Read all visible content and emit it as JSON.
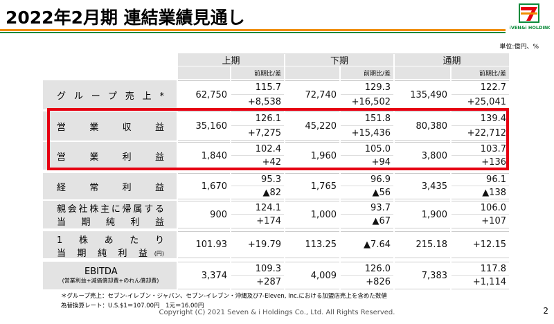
{
  "header": {
    "title": "2022年2月期 連結業績見通し",
    "logo_text": "SEVEN&i HOLDINGS"
  },
  "unit": "単位:億円、%",
  "table": {
    "periods": [
      "上期",
      "下期",
      "通期"
    ],
    "sub_header": "前期比/差",
    "rows": [
      {
        "label": "グループ売上*",
        "cells": [
          {
            "amount": "62,750",
            "ratio": "115.7",
            "diff": "+8,538"
          },
          {
            "amount": "72,740",
            "ratio": "129.3",
            "diff": "+16,502"
          },
          {
            "amount": "135,490",
            "ratio": "122.7",
            "diff": "+25,041"
          }
        ]
      },
      {
        "label": "営業収益",
        "cells": [
          {
            "amount": "35,160",
            "ratio": "126.1",
            "diff": "+7,275"
          },
          {
            "amount": "45,220",
            "ratio": "151.8",
            "diff": "+15,436"
          },
          {
            "amount": "80,380",
            "ratio": "139.4",
            "diff": "+22,712"
          }
        ]
      },
      {
        "label": "営業利益",
        "cells": [
          {
            "amount": "1,840",
            "ratio": "102.4",
            "diff": "+42"
          },
          {
            "amount": "1,960",
            "ratio": "105.0",
            "diff": "+94"
          },
          {
            "amount": "3,800",
            "ratio": "103.7",
            "diff": "+136"
          }
        ]
      },
      {
        "label": "経常利益",
        "cells": [
          {
            "amount": "1,670",
            "ratio": "95.3",
            "diff": "▲82"
          },
          {
            "amount": "1,765",
            "ratio": "96.9",
            "diff": "▲56"
          },
          {
            "amount": "3,435",
            "ratio": "96.1",
            "diff": "▲138"
          }
        ]
      },
      {
        "label": [
          "親会社株主に帰属する",
          "当期純利益"
        ],
        "cells": [
          {
            "amount": "900",
            "ratio": "124.1",
            "diff": "+174"
          },
          {
            "amount": "1,000",
            "ratio": "93.7",
            "diff": "▲67"
          },
          {
            "amount": "1,900",
            "ratio": "106.0",
            "diff": "+107"
          }
        ]
      },
      {
        "label": [
          "1株あたり",
          "当期純利益"
        ],
        "note": "(円)",
        "cells": [
          {
            "amount": "101.93",
            "diff": "+19.79"
          },
          {
            "amount": "113.25",
            "diff": "▲7.64"
          },
          {
            "amount": "215.18",
            "diff": "+12.15"
          }
        ]
      },
      {
        "label": "EBITDA",
        "note": "(営業利益+減価償却費+のれん償却費)",
        "cells": [
          {
            "amount": "3,374",
            "ratio": "109.3",
            "diff": "+287"
          },
          {
            "amount": "4,009",
            "ratio": "126.0",
            "diff": "+826"
          },
          {
            "amount": "7,383",
            "ratio": "117.8",
            "diff": "+1,114"
          }
        ]
      }
    ]
  },
  "footnotes": [
    "＊グループ売上：セブン‐イレブン・ジャパン、セブン‐イレブン・沖縄及び7‐Eleven, Inc.における加盟店売上を含めた数値",
    "為替換算レート：U.S.$1＝107.00円　1元＝16.00円"
  ],
  "copyright": "Copyright (C) 2021  Seven & i Holdings Co., Ltd.  All Rights Reserved.",
  "page_number": "2"
}
